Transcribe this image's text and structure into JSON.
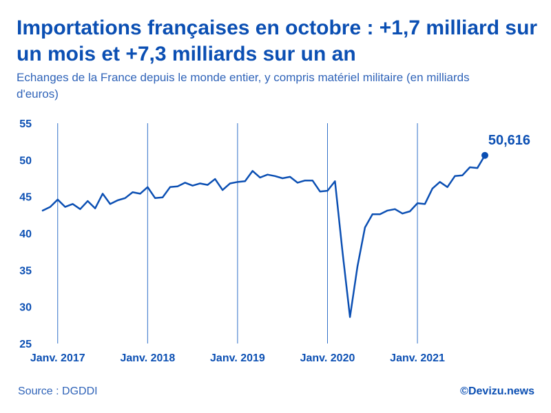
{
  "header": {
    "title": "Importations françaises en octobre : +1,7 milliard sur un mois et +7,3 milliards sur un an",
    "subtitle": "Echanges de la France depuis le monde entier, y compris matériel militaire (en milliards d'euros)"
  },
  "footer": {
    "source": "Source : DGDDI",
    "credit": "©Devizu.news"
  },
  "colors": {
    "accent": "#0b4fb3",
    "gridline": "#2f6fc8",
    "text_light": "#2f63b8"
  },
  "chart_data": {
    "type": "line",
    "title": "Importations françaises en octobre : +1,7 milliard sur un mois et +7,3 milliards sur un an",
    "xlabel": "",
    "ylabel": "",
    "ylim": [
      25,
      55
    ],
    "y_ticks": [
      "25",
      "30",
      "35",
      "40",
      "45",
      "50",
      "55"
    ],
    "x_tick_labels": [
      "Janv. 2017",
      "Janv. 2018",
      "Janv. 2019",
      "Janv. 2020",
      "Janv. 2021"
    ],
    "x_tick_indices": [
      2,
      14,
      26,
      38,
      50
    ],
    "grid": "vertical lines at each January",
    "legend": "none",
    "end_label": "50,616",
    "x": [
      "2016-11",
      "2016-12",
      "2017-01",
      "2017-02",
      "2017-03",
      "2017-04",
      "2017-05",
      "2017-06",
      "2017-07",
      "2017-08",
      "2017-09",
      "2017-10",
      "2017-11",
      "2017-12",
      "2018-01",
      "2018-02",
      "2018-03",
      "2018-04",
      "2018-05",
      "2018-06",
      "2018-07",
      "2018-08",
      "2018-09",
      "2018-10",
      "2018-11",
      "2018-12",
      "2019-01",
      "2019-02",
      "2019-03",
      "2019-04",
      "2019-05",
      "2019-06",
      "2019-07",
      "2019-08",
      "2019-09",
      "2019-10",
      "2019-11",
      "2019-12",
      "2020-01",
      "2020-02",
      "2020-03",
      "2020-04",
      "2020-05",
      "2020-06",
      "2020-07",
      "2020-08",
      "2020-09",
      "2020-10",
      "2020-11",
      "2020-12",
      "2021-01",
      "2021-02",
      "2021-03",
      "2021-04",
      "2021-05",
      "2021-06",
      "2021-07",
      "2021-08",
      "2021-09",
      "2021-10"
    ],
    "series": [
      {
        "values": [
          43.1,
          43.6,
          44.6,
          43.6,
          44.0,
          43.3,
          44.4,
          43.4,
          45.4,
          44.0,
          44.5,
          44.8,
          45.6,
          45.4,
          46.3,
          44.8,
          44.9,
          46.3,
          46.4,
          46.9,
          46.5,
          46.8,
          46.6,
          47.4,
          45.9,
          46.8,
          47.0,
          47.1,
          48.5,
          47.6,
          48.0,
          47.8,
          47.5,
          47.7,
          46.9,
          47.2,
          47.2,
          45.7,
          45.8,
          47.1,
          37.5,
          28.6,
          35.5,
          40.8,
          42.6,
          42.6,
          43.1,
          43.3,
          42.7,
          43.0,
          44.1,
          44.0,
          46.1,
          47.0,
          46.3,
          47.8,
          47.9,
          49.0,
          48.9,
          50.616
        ]
      }
    ]
  }
}
